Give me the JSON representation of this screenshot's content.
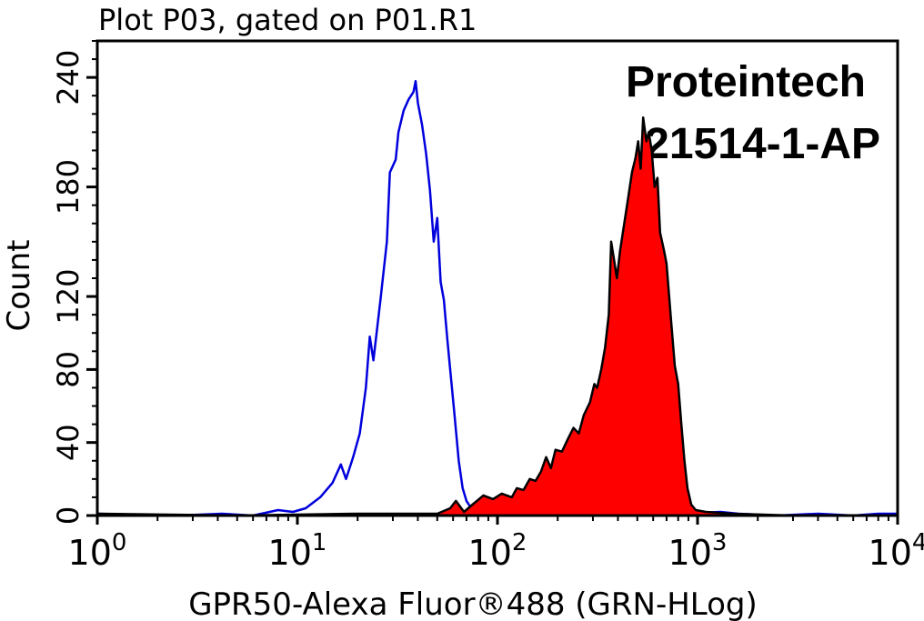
{
  "chart_data": {
    "type": "area",
    "title": "Plot P03, gated on P01.R1",
    "xlabel": "GPR50-Alexa Fluor®488 (GRN-HLog)",
    "ylabel": "Count",
    "xscale": "log",
    "xlim": [
      1,
      10000
    ],
    "ylim": [
      0,
      260
    ],
    "grid": false,
    "x_ticks": [
      {
        "value": 1,
        "base": "10",
        "exp": "0"
      },
      {
        "value": 10,
        "base": "10",
        "exp": "1"
      },
      {
        "value": 100,
        "base": "10",
        "exp": "2"
      },
      {
        "value": 1000,
        "base": "10",
        "exp": "3"
      },
      {
        "value": 10000,
        "base": "10",
        "exp": "4"
      }
    ],
    "y_ticks": [
      0,
      40,
      80,
      120,
      180,
      240
    ],
    "annotations": [
      "Proteintech",
      "21514-1-AP"
    ],
    "series": [
      {
        "role": "control",
        "style": "outline",
        "color": "#0000dd",
        "points": [
          [
            1.0,
            1
          ],
          [
            2.5,
            0
          ],
          [
            4.2,
            1
          ],
          [
            6.0,
            0
          ],
          [
            8.0,
            3
          ],
          [
            9.5,
            2
          ],
          [
            11,
            4
          ],
          [
            13,
            10
          ],
          [
            15,
            18
          ],
          [
            16.5,
            28
          ],
          [
            17.5,
            20
          ],
          [
            19,
            32
          ],
          [
            20.5,
            45
          ],
          [
            22,
            70
          ],
          [
            23,
            98
          ],
          [
            24,
            85
          ],
          [
            26,
            118
          ],
          [
            28,
            150
          ],
          [
            29,
            188
          ],
          [
            31,
            195
          ],
          [
            32,
            210
          ],
          [
            34,
            222
          ],
          [
            36,
            228
          ],
          [
            38,
            232
          ],
          [
            39,
            238
          ],
          [
            40,
            226
          ],
          [
            42,
            214
          ],
          [
            44,
            198
          ],
          [
            46,
            178
          ],
          [
            48,
            150
          ],
          [
            50,
            163
          ],
          [
            52,
            128
          ],
          [
            54,
            118
          ],
          [
            56,
            98
          ],
          [
            58,
            80
          ],
          [
            61,
            55
          ],
          [
            64,
            30
          ],
          [
            67,
            15
          ],
          [
            70,
            8
          ],
          [
            75,
            3
          ],
          [
            80,
            4
          ],
          [
            90,
            1
          ],
          [
            150,
            0
          ],
          [
            500,
            0
          ],
          [
            1300,
            2
          ],
          [
            1600,
            1
          ],
          [
            2500,
            0
          ],
          [
            4000,
            1
          ],
          [
            6000,
            0
          ],
          [
            8000,
            1
          ],
          [
            10000,
            1
          ]
        ]
      },
      {
        "role": "sample",
        "style": "filled",
        "color": "#ff0000",
        "stroke": "#000000",
        "points": [
          [
            1.0,
            1
          ],
          [
            5,
            0
          ],
          [
            20,
            1
          ],
          [
            50,
            1
          ],
          [
            58,
            4
          ],
          [
            62,
            8
          ],
          [
            68,
            2
          ],
          [
            75,
            6
          ],
          [
            85,
            11
          ],
          [
            95,
            9
          ],
          [
            105,
            12
          ],
          [
            118,
            10
          ],
          [
            125,
            15
          ],
          [
            135,
            14
          ],
          [
            145,
            20
          ],
          [
            155,
            19
          ],
          [
            165,
            24
          ],
          [
            175,
            32
          ],
          [
            185,
            26
          ],
          [
            195,
            36
          ],
          [
            210,
            35
          ],
          [
            225,
            42
          ],
          [
            240,
            48
          ],
          [
            255,
            45
          ],
          [
            270,
            55
          ],
          [
            290,
            62
          ],
          [
            305,
            72
          ],
          [
            315,
            70
          ],
          [
            330,
            80
          ],
          [
            345,
            92
          ],
          [
            360,
            110
          ],
          [
            370,
            150
          ],
          [
            380,
            142
          ],
          [
            395,
            130
          ],
          [
            410,
            145
          ],
          [
            430,
            160
          ],
          [
            450,
            174
          ],
          [
            470,
            188
          ],
          [
            490,
            196
          ],
          [
            505,
            205
          ],
          [
            520,
            190
          ],
          [
            535,
            218
          ],
          [
            555,
            205
          ],
          [
            570,
            210
          ],
          [
            590,
            200
          ],
          [
            610,
            180
          ],
          [
            630,
            185
          ],
          [
            650,
            155
          ],
          [
            680,
            145
          ],
          [
            700,
            138
          ],
          [
            740,
            105
          ],
          [
            770,
            82
          ],
          [
            800,
            72
          ],
          [
            830,
            50
          ],
          [
            860,
            30
          ],
          [
            890,
            15
          ],
          [
            930,
            6
          ],
          [
            980,
            3
          ],
          [
            1100,
            2
          ],
          [
            1500,
            1
          ],
          [
            3000,
            0
          ],
          [
            10000,
            0
          ]
        ]
      }
    ]
  }
}
